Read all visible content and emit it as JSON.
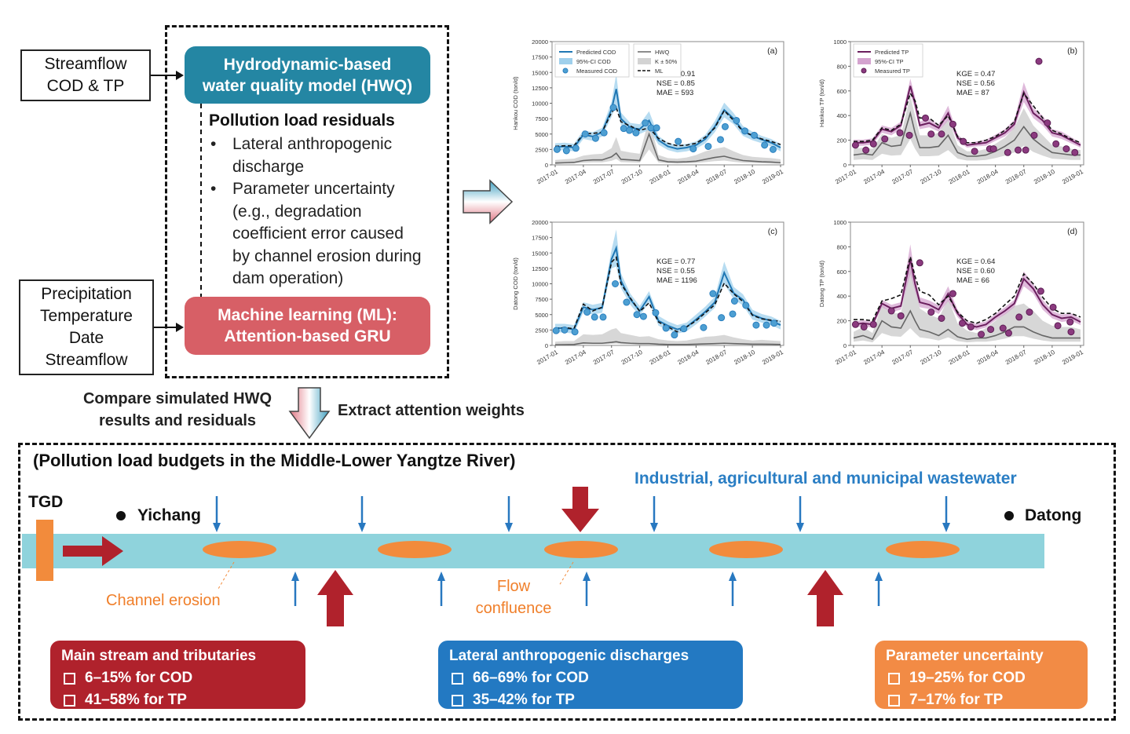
{
  "inputs": {
    "top": [
      "Streamflow",
      "COD & TP"
    ],
    "bottom": [
      "Precipitation",
      "Temperature",
      "Date",
      "Streamflow"
    ]
  },
  "models": {
    "hwq": [
      "Hydrodynamic-based",
      "water quality model (HWQ)"
    ],
    "ml": [
      "Machine learning (ML):",
      "Attention-based GRU"
    ],
    "colors": {
      "hwq": "#2486a3",
      "ml": "#d75f66"
    }
  },
  "residuals": {
    "title": "Pollution load residuals",
    "items": [
      [
        "Lateral anthropogenic",
        "discharge"
      ],
      [
        "Parameter uncertainty",
        "(e.g., degradation",
        "coefficient error caused",
        "by channel erosion during",
        "dam operation)"
      ]
    ]
  },
  "flow_captions": {
    "compare": [
      "Compare simulated HWQ",
      "results and residuals"
    ],
    "extract": "Extract attention weights"
  },
  "budget": {
    "title": "(Pollution load budgets in the Middle-Lower Yangtze River)",
    "wastewater_label": "Industrial, agricultural and municipal wastewater",
    "tgd": "TGD",
    "station_start": "Yichang",
    "station_end": "Datong",
    "channel_erosion": "Channel erosion",
    "flow_confluence": [
      "Flow",
      "confluence"
    ],
    "colors": {
      "river": "#8fd3dc",
      "erosion": "#f28b3c",
      "red_arrow": "#b0222c",
      "blue_arrow": "#2878c0"
    },
    "results": [
      {
        "title": "Main stream and tributaries",
        "lines": [
          "6–15% for COD",
          "41–58% for TP"
        ],
        "color": "#b0222c"
      },
      {
        "title": "Lateral anthropogenic discharges",
        "lines": [
          "66–69% for COD",
          "35–42% for TP"
        ],
        "color": "#2379c2"
      },
      {
        "title": "Parameter uncertainty",
        "lines": [
          "19–25% for COD",
          "7–17% for TP"
        ],
        "color": "#f28b45"
      }
    ]
  },
  "chart_data": [
    {
      "panel": "(a)",
      "type": "line",
      "ylabel": "Hankou COD (ton/d)",
      "ylim": [
        0,
        20000
      ],
      "yticks": [
        0,
        2500,
        5000,
        7500,
        10000,
        12500,
        15000,
        17500,
        20000
      ],
      "xticks": [
        "2017-01",
        "2017-04",
        "2017-07",
        "2017-10",
        "2018-01",
        "2018-04",
        "2018-07",
        "2018-10",
        "2019-01"
      ],
      "legend": [
        "Predicted COD",
        "95%-CI COD",
        "Measured COD",
        "HWQ",
        "K ± 50%",
        "ML"
      ],
      "legend_position": "top-left",
      "metrics": [
        "KGE = 0.91",
        "NSE = 0.85",
        "MAE = 593"
      ],
      "x_months": [
        0,
        1,
        2,
        3,
        4,
        5,
        6,
        6.5,
        7,
        8,
        9,
        10,
        11,
        12,
        13,
        14,
        15,
        16,
        17,
        18,
        19,
        20,
        21,
        22,
        23,
        24
      ],
      "series": [
        {
          "name": "Predicted COD",
          "values": [
            2900,
            3000,
            2800,
            4900,
            4600,
            5300,
            9000,
            12300,
            7500,
            6000,
            5800,
            7200,
            4000,
            3000,
            2600,
            2800,
            3200,
            4200,
            6200,
            8900,
            7500,
            5500,
            4700,
            4100,
            3600,
            2800
          ]
        },
        {
          "name": "ML",
          "values": [
            3000,
            3100,
            3100,
            5000,
            5100,
            5300,
            8500,
            9300,
            7000,
            6300,
            5600,
            6000,
            4300,
            3500,
            3100,
            3200,
            3500,
            4500,
            6000,
            8800,
            7200,
            5400,
            4800,
            4200,
            3800,
            3300
          ]
        },
        {
          "name": "HWQ",
          "values": [
            300,
            350,
            400,
            700,
            800,
            800,
            1300,
            1900,
            900,
            800,
            700,
            5000,
            800,
            500,
            450,
            500,
            600,
            900,
            1200,
            1400,
            1000,
            700,
            600,
            500,
            450,
            350
          ]
        },
        {
          "name": "CI_half_width",
          "values": [
            600,
            600,
            600,
            700,
            700,
            700,
            1200,
            2500,
            1000,
            800,
            800,
            1500,
            700,
            600,
            600,
            600,
            600,
            700,
            900,
            1200,
            900,
            800,
            700,
            600,
            600,
            600
          ]
        },
        {
          "name": "K_upper",
          "values": [
            800,
            900,
            1000,
            1500,
            1700,
            1800,
            2700,
            4500,
            2300,
            2000,
            1800,
            7500,
            1600,
            1100,
            1000,
            1200,
            1600,
            2200,
            2600,
            2900,
            2200,
            1600,
            1300,
            1200,
            1100,
            900
          ]
        }
      ],
      "measured": {
        "x": [
          0.2,
          1.2,
          2.2,
          3.2,
          4.3,
          5.2,
          6.2,
          7.3,
          7.9,
          8.6,
          9.6,
          10.2,
          10.8,
          13.1,
          14.7,
          16.3,
          17.6,
          18.1,
          19.3,
          20.2,
          21.2,
          22.3,
          23.2
        ],
        "y": [
          2500,
          2300,
          2700,
          5000,
          4300,
          5200,
          9300,
          5900,
          5600,
          5200,
          6800,
          6000,
          6000,
          3800,
          2600,
          3000,
          4100,
          6200,
          7200,
          5500,
          4800,
          3200,
          2500
        ]
      }
    },
    {
      "panel": "(b)",
      "type": "line",
      "ylabel": "Hankou TP (ton/d)",
      "ylim": [
        0,
        1000
      ],
      "yticks": [
        0,
        200,
        400,
        600,
        800,
        1000
      ],
      "xticks": [
        "2017-01",
        "2017-04",
        "2017-07",
        "2017-10",
        "2018-01",
        "2018-04",
        "2018-07",
        "2018-10",
        "2019-01"
      ],
      "legend": [
        "Predicted TP",
        "95%-CI TP",
        "Measured TP"
      ],
      "legend_position": "top-left",
      "metrics": [
        "KGE = 0.47",
        "NSE = 0.56",
        "MAE = 87"
      ],
      "x_months": [
        0,
        1,
        2,
        3,
        4,
        5,
        6,
        6.5,
        7,
        8,
        9,
        10,
        11,
        12,
        13,
        14,
        15,
        16,
        17,
        18,
        19,
        20,
        21,
        22,
        23,
        24
      ],
      "series": [
        {
          "name": "Predicted TP",
          "values": [
            180,
            180,
            190,
            290,
            270,
            320,
            640,
            500,
            320,
            340,
            300,
            420,
            220,
            160,
            170,
            180,
            220,
            260,
            330,
            590,
            420,
            360,
            260,
            240,
            200,
            160
          ]
        },
        {
          "name": "ML",
          "values": [
            190,
            190,
            200,
            300,
            280,
            330,
            580,
            520,
            380,
            380,
            320,
            400,
            230,
            180,
            180,
            200,
            230,
            280,
            350,
            580,
            480,
            380,
            280,
            250,
            210,
            180
          ]
        },
        {
          "name": "HWQ",
          "values": [
            80,
            90,
            80,
            180,
            150,
            160,
            420,
            260,
            140,
            140,
            150,
            240,
            100,
            70,
            70,
            80,
            110,
            150,
            200,
            310,
            210,
            150,
            100,
            90,
            80,
            80
          ]
        },
        {
          "name": "CI_half_width",
          "values": [
            25,
            25,
            25,
            30,
            30,
            30,
            60,
            50,
            30,
            35,
            30,
            60,
            25,
            20,
            20,
            25,
            25,
            30,
            35,
            80,
            40,
            40,
            30,
            30,
            25,
            20
          ]
        },
        {
          "name": "K_upper",
          "values": [
            130,
            140,
            130,
            250,
            220,
            240,
            560,
            400,
            240,
            240,
            260,
            380,
            160,
            110,
            110,
            130,
            170,
            220,
            300,
            460,
            320,
            240,
            160,
            150,
            130,
            120
          ]
        }
      ],
      "measured": {
        "x": [
          0.2,
          1.3,
          2.1,
          3.3,
          4.9,
          5.9,
          7.6,
          8.2,
          9.3,
          10.5,
          11.6,
          12.8,
          14.4,
          14.8,
          16.3,
          17.4,
          18.2,
          19.1,
          19.6,
          20.5,
          21.4,
          22.5,
          23.4
        ],
        "y": [
          160,
          120,
          170,
          210,
          260,
          240,
          380,
          250,
          250,
          330,
          190,
          110,
          130,
          130,
          100,
          120,
          120,
          240,
          840,
          340,
          170,
          130,
          100
        ]
      }
    },
    {
      "panel": "(c)",
      "type": "line",
      "ylabel": "Datong COD (ton/d)",
      "ylim": [
        0,
        20000
      ],
      "yticks": [
        0,
        2500,
        5000,
        7500,
        10000,
        12500,
        15000,
        17500,
        20000
      ],
      "xticks": [
        "2017-01",
        "2017-04",
        "2017-07",
        "2017-10",
        "2018-01",
        "2018-04",
        "2018-07",
        "2018-10",
        "2019-01"
      ],
      "legend": [],
      "metrics": [
        "KGE = 0.77",
        "NSE = 0.55",
        "MAE = 1196"
      ],
      "x_months": [
        0,
        1,
        2,
        3,
        4,
        5,
        6,
        6.5,
        7,
        8,
        9,
        10,
        11,
        12,
        13,
        14,
        15,
        16,
        17,
        18,
        19,
        20,
        21,
        22,
        23,
        24
      ],
      "series": [
        {
          "name": "Predicted COD",
          "values": [
            2800,
            2800,
            2600,
            6200,
            5800,
            6100,
            14000,
            15800,
            10500,
            7500,
            5600,
            7900,
            4000,
            3200,
            2600,
            3000,
            4200,
            5500,
            7000,
            11800,
            8500,
            7400,
            5000,
            4400,
            4000,
            3300
          ]
        },
        {
          "name": "ML",
          "values": [
            2700,
            2900,
            2700,
            6700,
            5600,
            6200,
            13500,
            14300,
            10000,
            7700,
            5500,
            6900,
            3800,
            3000,
            2200,
            3000,
            4000,
            5300,
            6600,
            10100,
            8400,
            7100,
            4900,
            4300,
            4100,
            3900
          ]
        },
        {
          "name": "HWQ",
          "values": [
            100,
            120,
            150,
            400,
            350,
            350,
            500,
            600,
            450,
            350,
            300,
            300,
            200,
            150,
            150,
            150,
            200,
            250,
            300,
            350,
            300,
            250,
            200,
            200,
            180,
            150
          ]
        },
        {
          "name": "CI_half_width",
          "values": [
            700,
            700,
            700,
            800,
            800,
            800,
            1500,
            3000,
            1200,
            900,
            800,
            900,
            800,
            700,
            700,
            700,
            800,
            800,
            900,
            1800,
            1000,
            900,
            800,
            700,
            700,
            700
          ]
        },
        {
          "name": "K_upper",
          "values": [
            600,
            700,
            700,
            1800,
            1700,
            1800,
            2600,
            2800,
            2000,
            1700,
            1400,
            1500,
            1000,
            800,
            700,
            800,
            1100,
            1400,
            1500,
            1700,
            1300,
            1000,
            800,
            900,
            800,
            700
          ]
        }
      ],
      "measured": {
        "x": [
          0.1,
          1.0,
          2.1,
          3.4,
          4.2,
          5.1,
          6.4,
          7.6,
          8.7,
          9.4,
          10.7,
          11.8,
          12.7,
          13.7,
          15.8,
          16.8,
          17.7,
          18.9,
          19.1,
          20.3,
          21.4,
          22.5,
          23.3
        ],
        "y": [
          2400,
          2500,
          2200,
          5400,
          4600,
          4600,
          10000,
          7000,
          5000,
          4700,
          5300,
          2800,
          1700,
          2700,
          2900,
          8400,
          4500,
          5100,
          7200,
          6500,
          3300,
          3300,
          3600
        ]
      }
    },
    {
      "panel": "(d)",
      "type": "line",
      "ylabel": "Datong TP (ton/d)",
      "ylim": [
        0,
        1000
      ],
      "yticks": [
        0,
        200,
        400,
        600,
        800,
        1000
      ],
      "xticks": [
        "2017-01",
        "2017-04",
        "2017-07",
        "2017-10",
        "2018-01",
        "2018-04",
        "2018-07",
        "2018-10",
        "2019-01"
      ],
      "legend": [],
      "metrics": [
        "KGE = 0.64",
        "NSE = 0.60",
        "MAE = 66"
      ],
      "x_months": [
        0,
        1,
        2,
        3,
        4,
        5,
        6,
        6.5,
        7,
        8,
        9,
        10,
        11,
        12,
        13,
        14,
        15,
        16,
        17,
        18,
        19,
        20,
        21,
        22,
        23,
        24
      ],
      "series": [
        {
          "name": "Predicted TP",
          "values": [
            170,
            180,
            170,
            340,
            300,
            320,
            700,
            500,
            350,
            330,
            290,
            420,
            260,
            170,
            150,
            170,
            230,
            280,
            340,
            540,
            460,
            330,
            250,
            220,
            230,
            190
          ]
        },
        {
          "name": "ML",
          "values": [
            210,
            210,
            200,
            360,
            380,
            410,
            720,
            560,
            440,
            410,
            330,
            400,
            270,
            200,
            180,
            210,
            260,
            330,
            400,
            580,
            500,
            390,
            300,
            260,
            260,
            230
          ]
        },
        {
          "name": "HWQ",
          "values": [
            60,
            80,
            50,
            200,
            150,
            140,
            280,
            200,
            130,
            110,
            80,
            130,
            70,
            50,
            60,
            60,
            80,
            110,
            150,
            150,
            110,
            80,
            60,
            60,
            60,
            60
          ]
        },
        {
          "name": "CI_half_width",
          "values": [
            25,
            25,
            25,
            30,
            30,
            30,
            120,
            60,
            40,
            35,
            35,
            60,
            30,
            25,
            25,
            25,
            25,
            30,
            30,
            60,
            40,
            40,
            30,
            30,
            30,
            25
          ]
        },
        {
          "name": "K_upper",
          "values": [
            110,
            150,
            100,
            330,
            260,
            260,
            650,
            520,
            300,
            250,
            220,
            380,
            180,
            120,
            100,
            140,
            200,
            260,
            320,
            340,
            280,
            200,
            160,
            150,
            150,
            130
          ]
        }
      ],
      "measured": {
        "x": [
          0.2,
          1.1,
          2.1,
          4.0,
          5.0,
          7.0,
          8.2,
          9.3,
          10.5,
          11.5,
          12.4,
          13.5,
          14.5,
          15.8,
          16.4,
          17.5,
          18.6,
          19.8,
          21.1,
          21.6,
          22.9,
          23.0
        ],
        "y": [
          170,
          150,
          170,
          280,
          240,
          670,
          270,
          220,
          420,
          180,
          150,
          90,
          130,
          140,
          100,
          230,
          270,
          440,
          310,
          160,
          190,
          110
        ]
      }
    }
  ]
}
